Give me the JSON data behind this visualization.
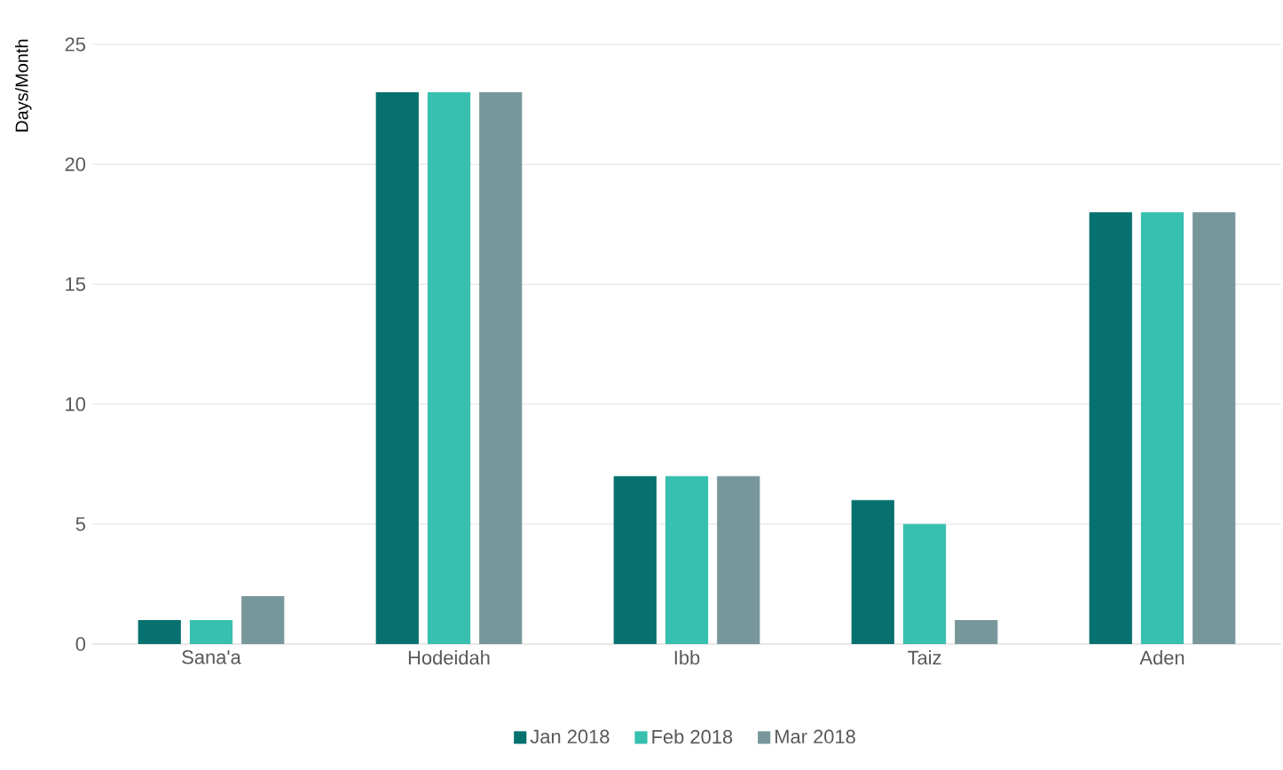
{
  "chart_data": {
    "type": "bar",
    "ylabel": "Days/Month",
    "categories": [
      "Sana'a",
      "Hodeidah",
      "Ibb",
      "Taiz",
      "Aden"
    ],
    "series": [
      {
        "name": "Jan 2018",
        "color": "#06716f",
        "values": [
          1,
          23,
          7,
          6,
          18
        ]
      },
      {
        "name": "Feb 2018",
        "color": "#37bfb0",
        "values": [
          1,
          23,
          7,
          5,
          18
        ]
      },
      {
        "name": "Mar 2018",
        "color": "#78979b",
        "values": [
          2,
          23,
          7,
          1,
          18
        ]
      }
    ],
    "ylim": [
      0,
      25
    ],
    "yticks": [
      0,
      5,
      10,
      15,
      20,
      25
    ],
    "grid": "y",
    "legend": "bottom"
  }
}
